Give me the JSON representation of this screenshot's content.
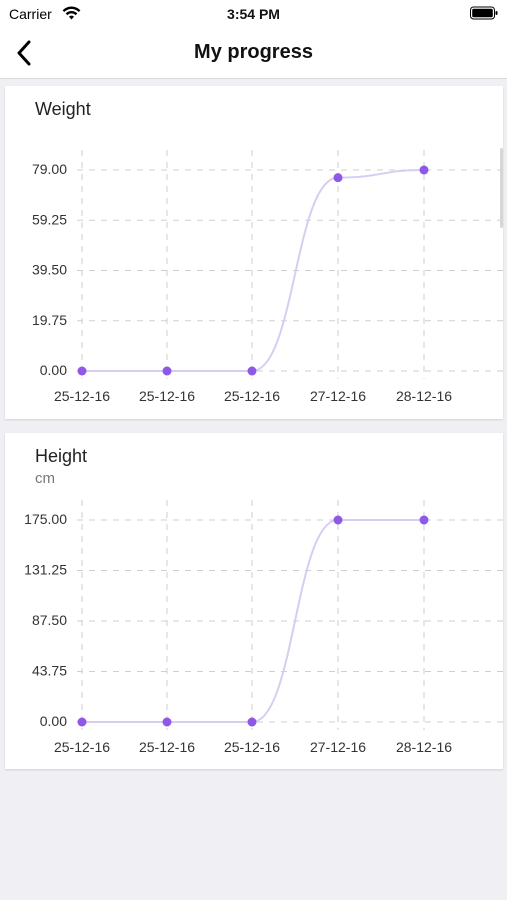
{
  "status_bar": {
    "carrier": "Carrier",
    "time": "3:54 PM"
  },
  "nav": {
    "title": "My progress",
    "back_icon": "chevron-left-icon"
  },
  "colors": {
    "accent": "#8e59e6",
    "line": "#d8ccf3",
    "grid": "#cfcfcf",
    "background": "#efeff4"
  },
  "chart_data": [
    {
      "type": "line",
      "title": "Weight",
      "subtitle": "",
      "categories": [
        "25-12-16",
        "25-12-16",
        "25-12-16",
        "27-12-16",
        "28-12-16"
      ],
      "series": [
        {
          "values": [
            0,
            0,
            0,
            76,
            79
          ]
        }
      ],
      "y_ticks": [
        "79.00",
        "59.25",
        "39.50",
        "19.75",
        "0.00"
      ],
      "ylim": [
        0,
        79
      ],
      "grid": true
    },
    {
      "type": "line",
      "title": "Height",
      "subtitle": "cm",
      "categories": [
        "25-12-16",
        "25-12-16",
        "25-12-16",
        "27-12-16",
        "28-12-16"
      ],
      "series": [
        {
          "values": [
            0,
            0,
            0,
            175,
            175
          ]
        }
      ],
      "y_ticks": [
        "175.00",
        "131.25",
        "87.50",
        "43.75",
        "0.00"
      ],
      "ylim": [
        0,
        175
      ],
      "grid": true
    }
  ]
}
